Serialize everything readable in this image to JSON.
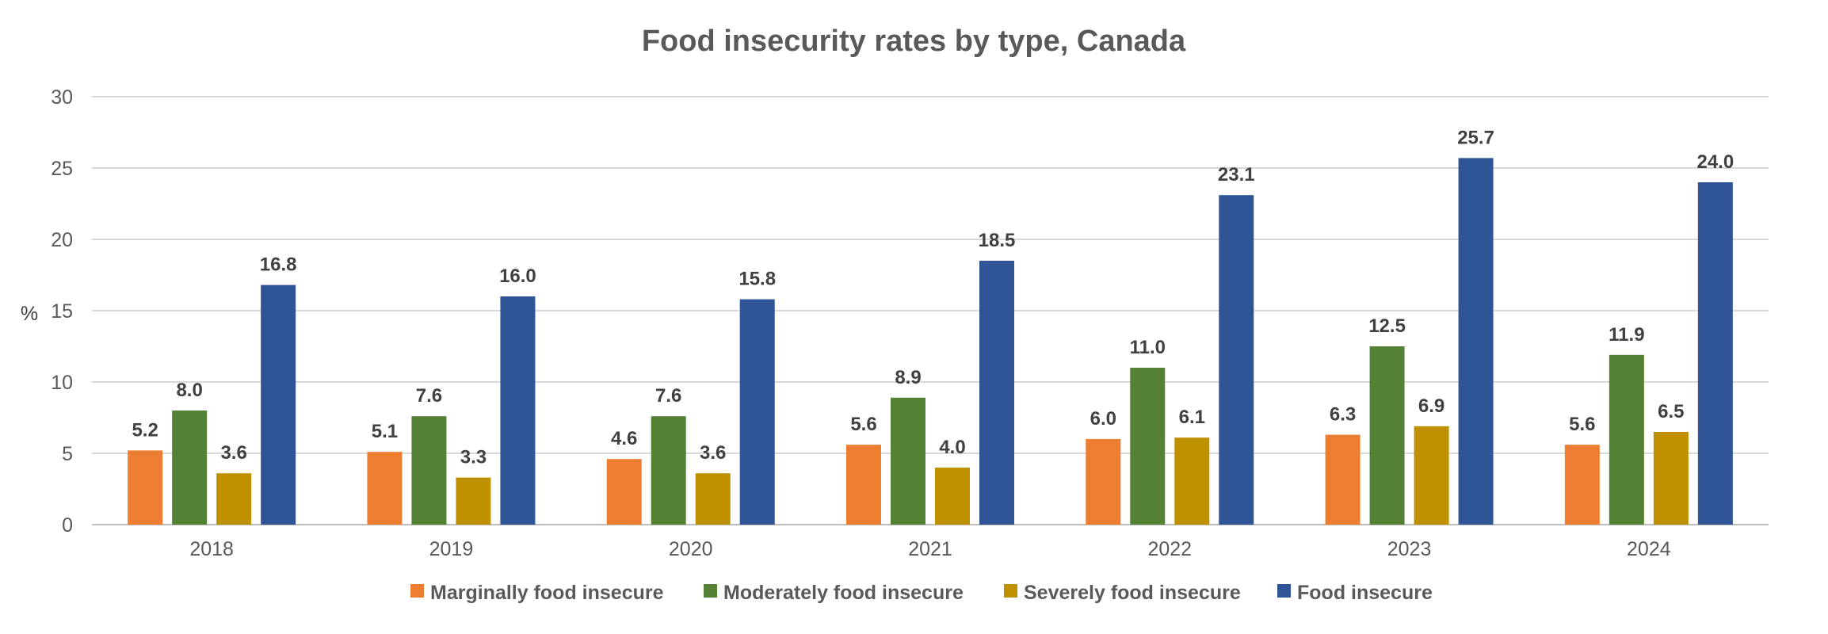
{
  "chart_data": {
    "type": "bar",
    "title": "Food insecurity rates by type, Canada",
    "xlabel": "",
    "ylabel": "%",
    "ylim": [
      0,
      30
    ],
    "yticks": [
      0,
      5,
      10,
      15,
      20,
      25,
      30
    ],
    "grid": true,
    "legend_position": "bottom",
    "categories": [
      "2018",
      "2019",
      "2020",
      "2021",
      "2022",
      "2023",
      "2024"
    ],
    "series": [
      {
        "name": "Marginally food insecure",
        "color": "#ed7d31",
        "values": [
          5.2,
          5.1,
          4.6,
          5.6,
          6.0,
          6.3,
          5.6
        ],
        "labels": [
          "5.2",
          "5.1",
          "4.6",
          "5.6",
          "6.0",
          "6.3",
          "5.6"
        ]
      },
      {
        "name": "Moderately food insecure",
        "color": "#548235",
        "values": [
          8.0,
          7.6,
          7.6,
          8.9,
          11.0,
          12.5,
          11.9
        ],
        "labels": [
          "8.0",
          "7.6",
          "7.6",
          "8.9",
          "11.0",
          "12.5",
          "11.9"
        ]
      },
      {
        "name": "Severely food insecure",
        "color": "#bf9000",
        "values": [
          3.6,
          3.3,
          3.6,
          4.0,
          6.1,
          6.9,
          6.5
        ],
        "labels": [
          "3.6",
          "3.3",
          "3.6",
          "4.0",
          "6.1",
          "6.9",
          "6.5"
        ]
      },
      {
        "name": "Food insecure",
        "color": "#2f5597",
        "values": [
          16.8,
          16.0,
          15.8,
          18.5,
          23.1,
          25.7,
          24.0
        ],
        "labels": [
          "16.8",
          "16.0",
          "15.8",
          "18.5",
          "23.1",
          "25.7",
          "24.0"
        ]
      }
    ]
  }
}
